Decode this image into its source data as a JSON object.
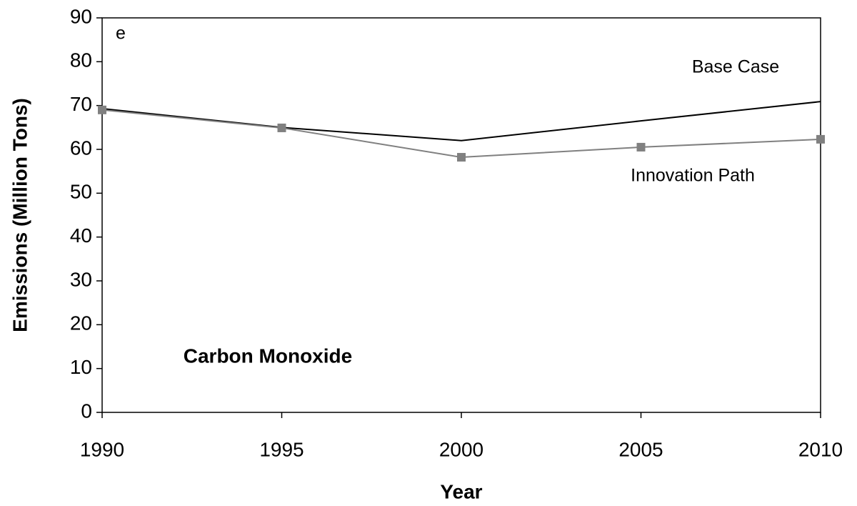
{
  "chart_data": {
    "type": "line",
    "annotations": [
      "e",
      "Carbon Monoxide"
    ],
    "x_label": "Year",
    "y_label": "Emissions (Million Tons)",
    "x": [
      1990,
      1995,
      2000,
      2005,
      2010
    ],
    "series": [
      {
        "name": "Base Case",
        "color": "#000000",
        "values": [
          69.3,
          65,
          62,
          66.5,
          70.9
        ]
      },
      {
        "name": "Innovation Path",
        "color": "#808080",
        "marker": "square",
        "values": [
          69,
          64.9,
          58.2,
          60.5,
          62.3
        ]
      }
    ],
    "xlim": [
      1990,
      2010
    ],
    "xticks": [
      1990,
      1995,
      2000,
      2005,
      2010
    ],
    "ylim": [
      0,
      90
    ],
    "yticks": [
      0,
      10,
      20,
      30,
      40,
      50,
      60,
      70,
      80,
      90
    ],
    "grid": false
  }
}
